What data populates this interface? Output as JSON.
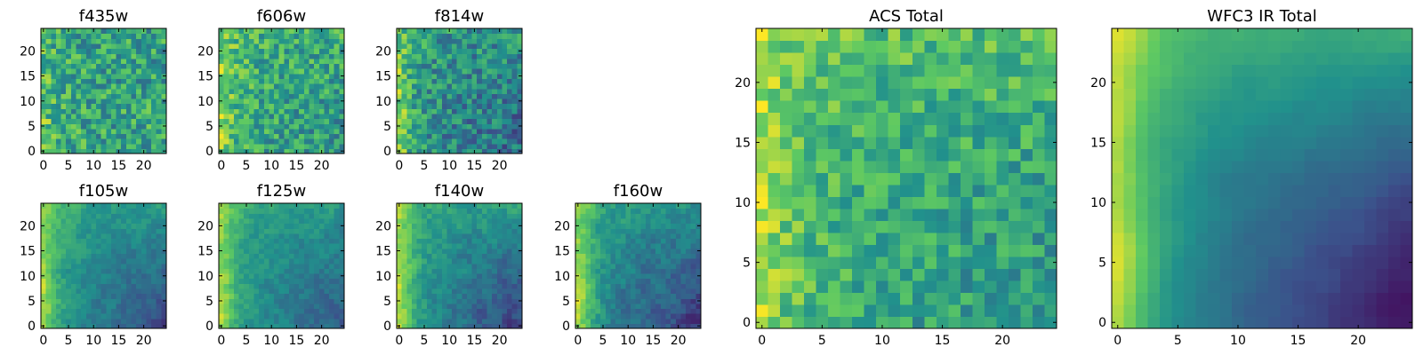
{
  "figure": {
    "colormap": [
      "#440154",
      "#3b528b",
      "#21918c",
      "#5ec962",
      "#fde725"
    ]
  },
  "chart_data": [
    {
      "type": "heatmap",
      "title": "f435w",
      "grid_size": 25,
      "xticks": [
        0,
        5,
        10,
        15,
        20
      ],
      "yticks": [
        0,
        5,
        10,
        15,
        20
      ],
      "xlim": [
        -0.5,
        24.5
      ],
      "ylim": [
        -0.5,
        24.5
      ],
      "style": {
        "base": 0.58,
        "noise": 0.22,
        "left_glow": 0.18,
        "right_dip": 0.0,
        "top_bright": 0.0,
        "smooth": 0,
        "seed": 11
      }
    },
    {
      "type": "heatmap",
      "title": "f606w",
      "grid_size": 25,
      "xticks": [
        0,
        5,
        10,
        15,
        20
      ],
      "yticks": [
        0,
        5,
        10,
        15,
        20
      ],
      "xlim": [
        -0.5,
        24.5
      ],
      "ylim": [
        -0.5,
        24.5
      ],
      "style": {
        "base": 0.58,
        "noise": 0.2,
        "left_glow": 0.3,
        "right_dip": 0.06,
        "top_bright": 0.05,
        "smooth": 0,
        "seed": 23
      }
    },
    {
      "type": "heatmap",
      "title": "f814w",
      "grid_size": 25,
      "xticks": [
        0,
        5,
        10,
        15,
        20
      ],
      "yticks": [
        0,
        5,
        10,
        15,
        20
      ],
      "xlim": [
        -0.5,
        24.5
      ],
      "ylim": [
        -0.5,
        24.5
      ],
      "style": {
        "base": 0.46,
        "noise": 0.2,
        "left_glow": 0.42,
        "right_dip": 0.1,
        "top_bright": 0.06,
        "smooth": 0,
        "seed": 37
      }
    },
    {
      "type": "heatmap",
      "title": "f105w",
      "grid_size": 25,
      "xticks": [
        0,
        5,
        10,
        15,
        20
      ],
      "yticks": [
        0,
        5,
        10,
        15,
        20
      ],
      "xlim": [
        -0.5,
        24.5
      ],
      "ylim": [
        -0.5,
        24.5
      ],
      "style": {
        "base": 0.45,
        "noise": 0.12,
        "left_glow": 0.5,
        "right_dip": 0.22,
        "top_bright": 0.1,
        "smooth": 1,
        "seed": 41
      }
    },
    {
      "type": "heatmap",
      "title": "f125w",
      "grid_size": 25,
      "xticks": [
        0,
        5,
        10,
        15,
        20
      ],
      "yticks": [
        0,
        5,
        10,
        15,
        20
      ],
      "xlim": [
        -0.5,
        24.5
      ],
      "ylim": [
        -0.5,
        24.5
      ],
      "style": {
        "base": 0.47,
        "noise": 0.12,
        "left_glow": 0.5,
        "right_dip": 0.18,
        "top_bright": 0.08,
        "smooth": 1,
        "seed": 53
      }
    },
    {
      "type": "heatmap",
      "title": "f140w",
      "grid_size": 25,
      "xticks": [
        0,
        5,
        10,
        15,
        20
      ],
      "yticks": [
        0,
        5,
        10,
        15,
        20
      ],
      "xlim": [
        -0.5,
        24.5
      ],
      "ylim": [
        -0.5,
        24.5
      ],
      "style": {
        "base": 0.44,
        "noise": 0.14,
        "left_glow": 0.55,
        "right_dip": 0.24,
        "top_bright": 0.12,
        "smooth": 1,
        "seed": 67
      }
    },
    {
      "type": "heatmap",
      "title": "f160w",
      "grid_size": 25,
      "xticks": [
        0,
        5,
        10,
        15,
        20
      ],
      "yticks": [
        0,
        5,
        10,
        15,
        20
      ],
      "xlim": [
        -0.5,
        24.5
      ],
      "ylim": [
        -0.5,
        24.5
      ],
      "style": {
        "base": 0.42,
        "noise": 0.14,
        "left_glow": 0.58,
        "right_dip": 0.26,
        "top_bright": 0.1,
        "smooth": 1,
        "seed": 79
      }
    },
    {
      "type": "heatmap",
      "title": "ACS Total",
      "grid_size": 25,
      "xticks": [
        0,
        5,
        10,
        15,
        20
      ],
      "yticks": [
        0,
        5,
        10,
        15,
        20
      ],
      "xlim": [
        -0.5,
        24.5
      ],
      "ylim": [
        -0.5,
        24.5
      ],
      "style": {
        "base": 0.6,
        "noise": 0.16,
        "left_glow": 0.3,
        "right_dip": 0.08,
        "top_bright": 0.1,
        "smooth": 0,
        "seed": 97
      }
    },
    {
      "type": "heatmap",
      "title": "WFC3 IR Total",
      "grid_size": 25,
      "xticks": [
        0,
        5,
        10,
        15,
        20
      ],
      "yticks": [
        0,
        5,
        10,
        15,
        20
      ],
      "xlim": [
        -0.5,
        24.5
      ],
      "ylim": [
        -0.5,
        24.5
      ],
      "style": {
        "base": 0.4,
        "noise": 0.05,
        "left_glow": 0.62,
        "right_dip": 0.36,
        "top_bright": 0.22,
        "smooth": 2,
        "seed": 113
      }
    }
  ]
}
